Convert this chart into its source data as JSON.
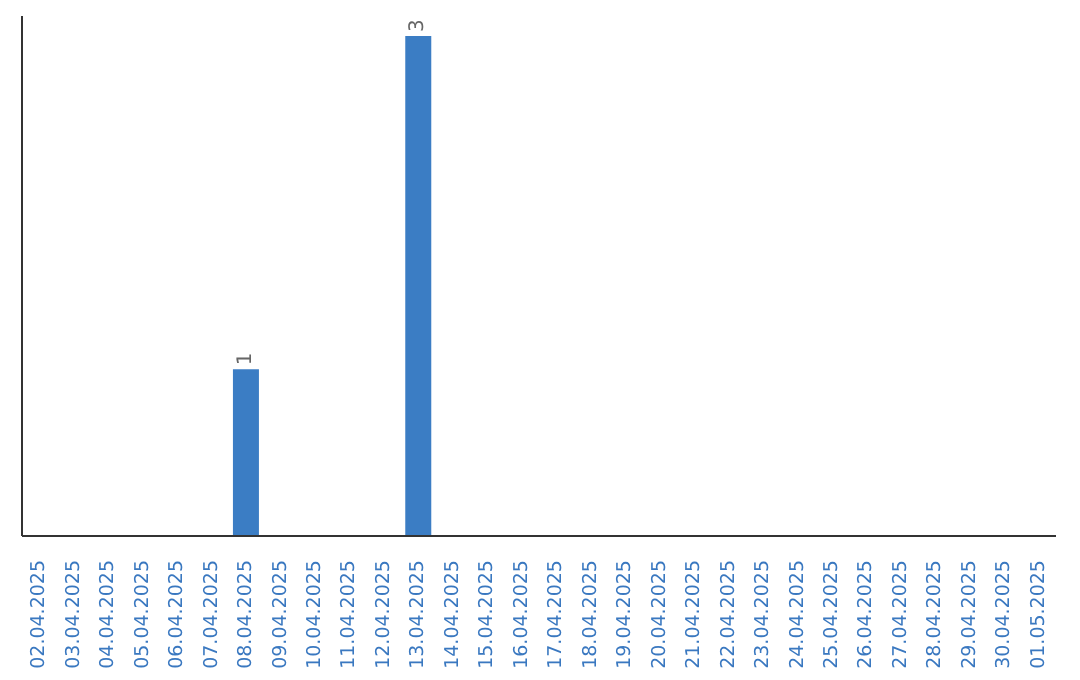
{
  "chart_data": {
    "type": "bar",
    "categories": [
      "02.04.2025",
      "03.04.2025",
      "04.04.2025",
      "05.04.2025",
      "06.04.2025",
      "07.04.2025",
      "08.04.2025",
      "09.04.2025",
      "10.04.2025",
      "11.04.2025",
      "12.04.2025",
      "13.04.2025",
      "14.04.2025",
      "15.04.2025",
      "16.04.2025",
      "17.04.2025",
      "18.04.2025",
      "19.04.2025",
      "20.04.2025",
      "21.04.2025",
      "22.04.2025",
      "23.04.2025",
      "24.04.2025",
      "25.04.2025",
      "26.04.2025",
      "27.04.2025",
      "28.04.2025",
      "29.04.2025",
      "30.04.2025",
      "01.05.2025"
    ],
    "values": [
      0,
      0,
      0,
      0,
      0,
      0,
      1,
      0,
      0,
      0,
      0,
      3,
      0,
      0,
      0,
      0,
      0,
      0,
      0,
      0,
      0,
      0,
      0,
      0,
      0,
      0,
      0,
      0,
      0,
      0
    ],
    "value_labels": [
      null,
      null,
      null,
      null,
      null,
      null,
      "1",
      null,
      null,
      null,
      null,
      "3",
      null,
      null,
      null,
      null,
      null,
      null,
      null,
      null,
      null,
      null,
      null,
      null,
      null,
      null,
      null,
      null,
      null,
      null
    ],
    "color": "#3b7dc4",
    "tick_labels": "x",
    "grid": false,
    "legend": false
  }
}
